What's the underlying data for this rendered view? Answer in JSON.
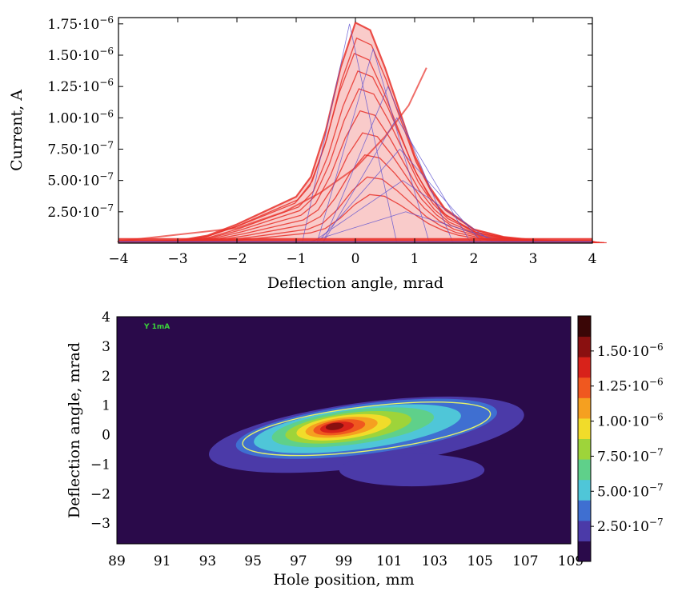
{
  "chart_data": [
    {
      "type": "line",
      "xlabel": "Deflection angle, mrad",
      "ylabel": "Current, A",
      "xlim": [
        -4,
        4
      ],
      "ylim": [
        0,
        1.8e-06
      ],
      "xticks": [
        -4,
        -3,
        -2,
        -1,
        0,
        1,
        2,
        3,
        4
      ],
      "xtick_labels": [
        "−4",
        "−3",
        "−2",
        "−1",
        "0",
        "1",
        "2",
        "3",
        "4"
      ],
      "yticks": [
        2.5e-07,
        5e-07,
        7.5e-07,
        1e-06,
        1.25e-06,
        1.5e-06,
        1.75e-06
      ],
      "ytick_labels": [
        {
          "m": "2.50",
          "e": "−7"
        },
        {
          "m": "5.00",
          "e": "−7"
        },
        {
          "m": "7.50",
          "e": "−7"
        },
        {
          "m": "1.00",
          "e": "−6"
        },
        {
          "m": "1.25",
          "e": "−6"
        },
        {
          "m": "1.50",
          "e": "−6"
        },
        {
          "m": "1.75",
          "e": "−6"
        }
      ],
      "x": [
        -4,
        -3.5,
        -3,
        -2.5,
        -2,
        -1.5,
        -1,
        -0.75,
        -0.5,
        -0.25,
        0,
        0.25,
        0.5,
        0.75,
        1,
        1.25,
        1.5,
        2,
        2.5,
        3,
        3.5,
        4
      ],
      "series": [
        {
          "values": [
            1.5e-08,
            1.5e-08,
            2e-08,
            6e-08,
            1.5e-07,
            2.6e-07,
            3.7e-07,
            5.3e-07,
            9e-07,
            1.4e-06,
            1.76e-06,
            1.7e-06,
            1.4e-06,
            1.05e-06,
            7e-07,
            4.5e-07,
            2.8e-07,
            1.1e-07,
            5e-08,
            2.5e-08,
            1.5e-08,
            1.5e-08
          ]
        }
      ],
      "series_color": "#e8312a",
      "annotation_color": "#5a4fcf",
      "grid": false
    },
    {
      "type": "heatmap",
      "xlabel": "Hole position, mm",
      "ylabel": "Deflection angle, mrad",
      "xlim": [
        89,
        109
      ],
      "ylim": [
        -3.7,
        4
      ],
      "xticks": [
        89,
        91,
        93,
        95,
        97,
        99,
        101,
        103,
        105,
        107,
        109
      ],
      "xtick_labels": [
        "89",
        "91",
        "93",
        "95",
        "97",
        "99",
        "101",
        "103",
        "105",
        "107",
        "109"
      ],
      "yticks": [
        -3,
        -2,
        -1,
        0,
        1,
        2,
        3,
        4
      ],
      "ytick_labels": [
        "−3",
        "−2",
        "−1",
        "0",
        "1",
        "2",
        "3",
        "4"
      ],
      "annotation": "Y 1mA",
      "colorbar": {
        "ticks": [
          2.5e-07,
          5e-07,
          7.5e-07,
          1e-06,
          1.25e-06,
          1.5e-06
        ],
        "tick_labels": [
          {
            "m": "2.50",
            "e": "−7"
          },
          {
            "m": "5.00",
            "e": "−7"
          },
          {
            "m": "7.50",
            "e": "−7"
          },
          {
            "m": "1.00",
            "e": "−6"
          },
          {
            "m": "1.25",
            "e": "−6"
          },
          {
            "m": "1.50",
            "e": "−6"
          }
        ],
        "range": [
          0,
          1.75e-06
        ],
        "colors": [
          "#2a0a4a",
          "#4b3aa8",
          "#3f6fd1",
          "#4fc6d8",
          "#5fd08a",
          "#9ed43a",
          "#f1dc2a",
          "#f5a020",
          "#f0581f",
          "#d8221a",
          "#8a1010",
          "#3a0606"
        ]
      },
      "levels": [
        {
          "level": 1.5e-07,
          "color": "#4b3aa8",
          "cx": 100,
          "cy": 0.0,
          "rx": 7.0,
          "ry": 1.1,
          "tilt": 0.1
        },
        {
          "level": 4e-07,
          "color": "#3f6fd1",
          "cx": 100,
          "cy": 0.2,
          "rx": 5.8,
          "ry": 0.85,
          "tilt": 0.1
        },
        {
          "level": 5.5e-07,
          "color": "#4fc6d8",
          "cx": 99.6,
          "cy": 0.2,
          "rx": 4.6,
          "ry": 0.7,
          "tilt": 0.1
        },
        {
          "level": 7.5e-07,
          "color": "#5fd08a",
          "cx": 99.4,
          "cy": 0.25,
          "rx": 3.6,
          "ry": 0.58,
          "tilt": 0.1
        },
        {
          "level": 9e-07,
          "color": "#9ed43a",
          "cx": 99.2,
          "cy": 0.25,
          "rx": 2.8,
          "ry": 0.48,
          "tilt": 0.1
        },
        {
          "level": 1.05e-06,
          "color": "#f1dc2a",
          "cx": 99.0,
          "cy": 0.25,
          "rx": 2.1,
          "ry": 0.4,
          "tilt": 0.1
        },
        {
          "level": 1.2e-06,
          "color": "#f5a020",
          "cx": 98.9,
          "cy": 0.25,
          "rx": 1.6,
          "ry": 0.32,
          "tilt": 0.1
        },
        {
          "level": 1.35e-06,
          "color": "#f0581f",
          "cx": 98.8,
          "cy": 0.25,
          "rx": 1.15,
          "ry": 0.25,
          "tilt": 0.1
        },
        {
          "level": 1.5e-06,
          "color": "#d8221a",
          "cx": 98.7,
          "cy": 0.25,
          "rx": 0.75,
          "ry": 0.18,
          "tilt": 0.1
        },
        {
          "level": 1.65e-06,
          "color": "#8a1010",
          "cx": 98.6,
          "cy": 0.28,
          "rx": 0.4,
          "ry": 0.12,
          "tilt": 0.1
        }
      ],
      "background_color": "#2a0a4a",
      "outline_color": "#e6f26a"
    }
  ]
}
